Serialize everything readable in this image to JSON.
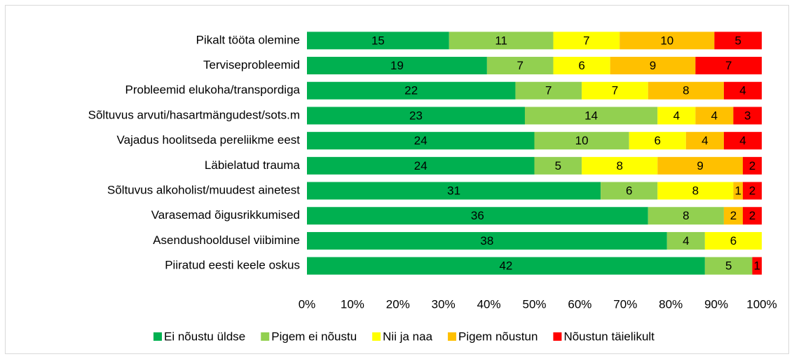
{
  "chart_data": {
    "type": "stacked_bar_100",
    "categories": [
      "Pikalt tööta olemine",
      "Terviseprobleemid",
      "Probleemid elukoha/transpordiga",
      "Sõltuvus arvuti/hasartmängudest/sots.m",
      "Vajadus hoolitseda pereliikme eest",
      "Läbielatud trauma",
      "Sõltuvus alkoholist/muudest ainetest",
      "Varasemad õigusrikkumised",
      "Asendushooldusel viibimine",
      "Piiratud eesti keele oskus"
    ],
    "series": [
      {
        "name": "Ei nõustu üldse",
        "color": "#00b050",
        "values": [
          15,
          19,
          22,
          23,
          24,
          24,
          31,
          36,
          38,
          42
        ]
      },
      {
        "name": "Pigem ei nõustu",
        "color": "#92d050",
        "values": [
          11,
          7,
          7,
          14,
          10,
          5,
          6,
          8,
          4,
          5
        ]
      },
      {
        "name": "Nii ja naa",
        "color": "#ffff00",
        "values": [
          7,
          6,
          7,
          4,
          6,
          8,
          8,
          0,
          6,
          0
        ]
      },
      {
        "name": "Pigem nõustun",
        "color": "#ffc000",
        "values": [
          10,
          9,
          8,
          4,
          4,
          9,
          1,
          2,
          0,
          0
        ]
      },
      {
        "name": "Nõustun täielikult",
        "color": "#ff0000",
        "values": [
          5,
          7,
          4,
          3,
          4,
          2,
          2,
          2,
          0,
          1
        ]
      }
    ],
    "xlim": [
      0,
      100
    ],
    "xticks": [
      {
        "value": 0,
        "label": "0%"
      },
      {
        "value": 10,
        "label": "10%"
      },
      {
        "value": 20,
        "label": "20%"
      },
      {
        "value": 30,
        "label": "30%"
      },
      {
        "value": 40,
        "label": "40%"
      },
      {
        "value": 50,
        "label": "50%"
      },
      {
        "value": 60,
        "label": "60%"
      },
      {
        "value": 70,
        "label": "70%"
      },
      {
        "value": 80,
        "label": "80%"
      },
      {
        "value": 90,
        "label": "90%"
      },
      {
        "value": 100,
        "label": "100%"
      }
    ],
    "legend": "bottom"
  }
}
